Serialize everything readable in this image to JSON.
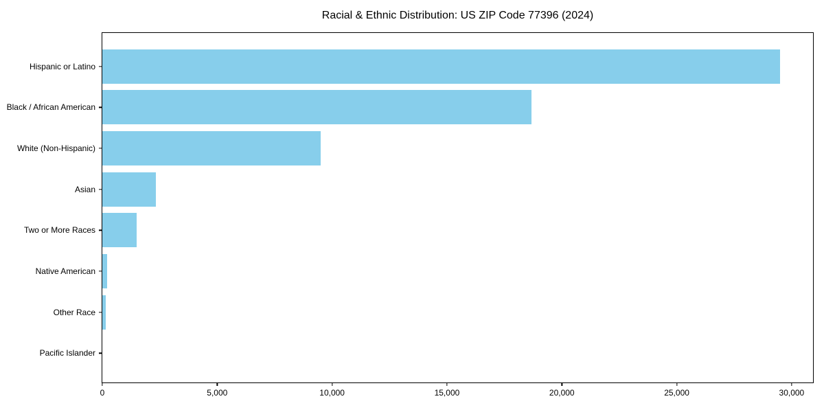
{
  "title": "Racial & Ethnic Distribution: US ZIP Code 77396 (2024)",
  "colors": {
    "bar": "#87CEEB",
    "axis": "#000000",
    "text": "#000000",
    "background": "#FFFFFF"
  },
  "chart_data": {
    "type": "bar",
    "orientation": "horizontal",
    "title": "Racial & Ethnic Distribution: US ZIP Code 77396 (2024)",
    "categories": [
      "Hispanic or Latino",
      "Black / African American",
      "White (Non-Hispanic)",
      "Asian",
      "Two or More Races",
      "Native American",
      "Other Race",
      "Pacific Islander"
    ],
    "values": [
      29500,
      18680,
      9510,
      2320,
      1500,
      200,
      150,
      0
    ],
    "bar_color": "#87CEEB",
    "xlabel": "",
    "ylabel": "",
    "xlim": [
      0,
      30930
    ],
    "x_ticks": [
      0,
      5000,
      10000,
      15000,
      20000,
      25000,
      30000
    ],
    "x_tick_labels": [
      "0",
      "5,000",
      "10,000",
      "15,000",
      "20,000",
      "25,000",
      "30,000"
    ],
    "grid": false,
    "legend": false,
    "category_order": "top-to-bottom descending"
  }
}
